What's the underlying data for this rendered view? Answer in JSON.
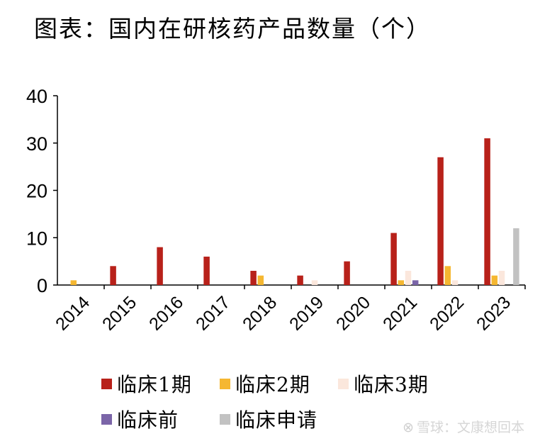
{
  "title": "图表：国内在研核药产品数量（个）",
  "watermark": {
    "icon": "snowball-logo-icon",
    "text": "雪球：文康想回本"
  },
  "chart_data": {
    "type": "bar",
    "title": "图表：国内在研核药产品数量（个）",
    "xlabel": "",
    "ylabel": "",
    "categories": [
      "2014",
      "2015",
      "2016",
      "2017",
      "2018",
      "2019",
      "2020",
      "2021",
      "2022",
      "2023"
    ],
    "series": [
      {
        "name": "临床1期",
        "color": "#b8211a",
        "values": [
          0,
          4,
          8,
          6,
          3,
          2,
          5,
          11,
          27,
          31
        ]
      },
      {
        "name": "临床2期",
        "color": "#f5b731",
        "values": [
          1,
          0,
          0,
          0,
          2,
          0,
          0,
          1,
          4,
          2
        ]
      },
      {
        "name": "临床3期",
        "color": "#fbe7dc",
        "values": [
          0,
          0,
          0,
          0,
          0,
          1,
          0,
          3,
          1,
          3
        ]
      },
      {
        "name": "临床前",
        "color": "#7b65a8",
        "values": [
          0,
          0,
          0,
          0,
          0,
          0,
          0,
          1,
          0,
          0
        ]
      },
      {
        "name": "临床申请",
        "color": "#c2c2c2",
        "values": [
          0,
          0,
          0,
          0,
          0,
          0,
          0,
          0,
          0,
          12
        ]
      }
    ],
    "ylim": [
      0,
      40
    ],
    "yticks": [
      0,
      10,
      20,
      30,
      40
    ],
    "grid": false,
    "legend_position": "bottom"
  }
}
